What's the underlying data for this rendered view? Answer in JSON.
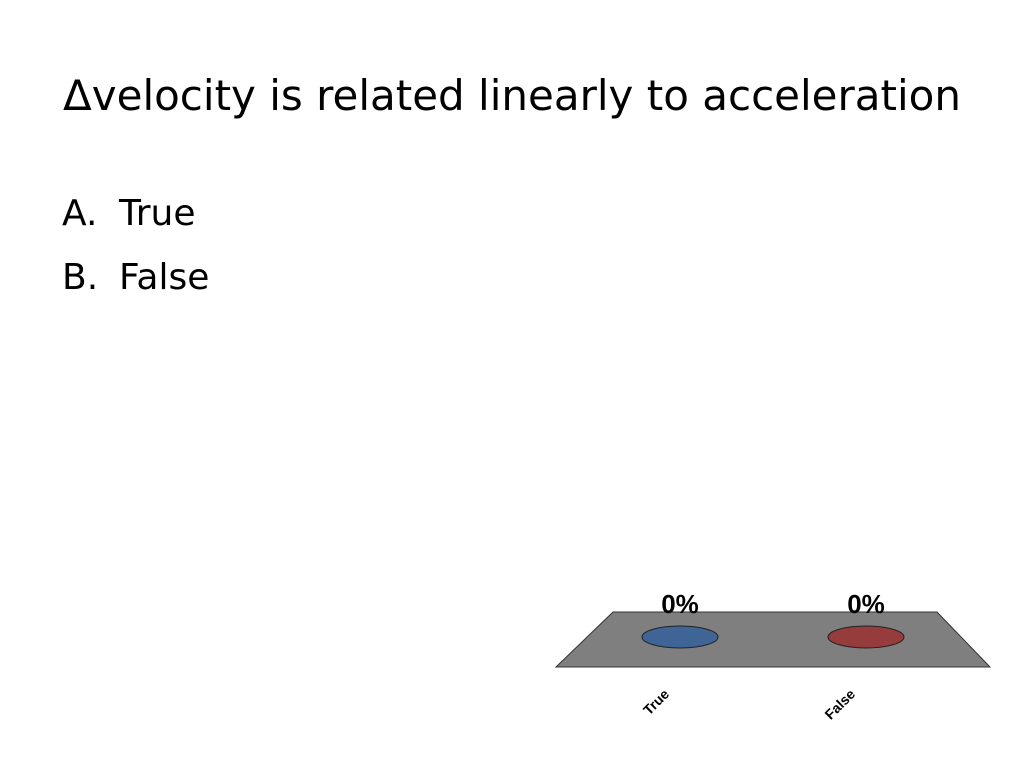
{
  "slide": {
    "title": "Δvelocity is related linearly to acceleration"
  },
  "answers": [
    {
      "letter": "A.",
      "text": "True"
    },
    {
      "letter": "B.",
      "text": "False"
    }
  ],
  "chart_data": {
    "type": "bar",
    "categories": [
      "True",
      "False"
    ],
    "values": [
      0,
      0
    ],
    "data_labels": [
      "0%",
      "0%"
    ],
    "unit": "%",
    "ylim": [
      0,
      100
    ],
    "colors": [
      "#3f6496",
      "#963c3c"
    ],
    "floor_color": "#7f7f7f",
    "grid": false,
    "legend": "none"
  }
}
